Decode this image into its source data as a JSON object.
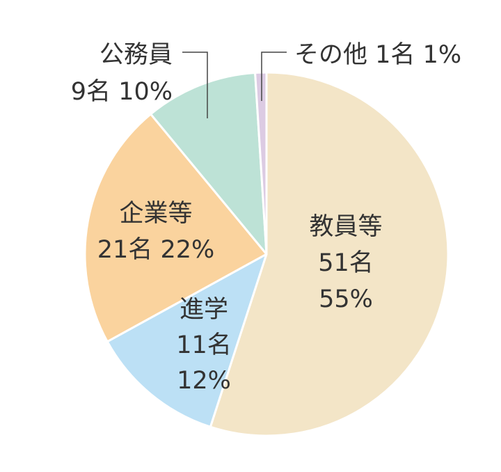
{
  "chart_data": {
    "type": "pie",
    "start_angle_deg": 0,
    "direction": "clockwise",
    "slices": [
      {
        "name": "教員等",
        "count_label": "51名",
        "pct_label": "55%",
        "value": 55,
        "color": "#F3E5C7"
      },
      {
        "name": "進学",
        "count_label": "11名",
        "pct_label": "12%",
        "value": 12,
        "color": "#BCE0F5"
      },
      {
        "name": "企業等",
        "count_label": "21名",
        "pct_label": "22%",
        "value": 22,
        "color": "#FAD39E"
      },
      {
        "name": "公務員",
        "count_label": "9名",
        "pct_label": "10%",
        "value": 10,
        "color": "#BDE2D6"
      },
      {
        "name": "その他",
        "count_label": "1名",
        "pct_label": "1%",
        "value": 1,
        "color": "#DCCBE3"
      }
    ]
  }
}
